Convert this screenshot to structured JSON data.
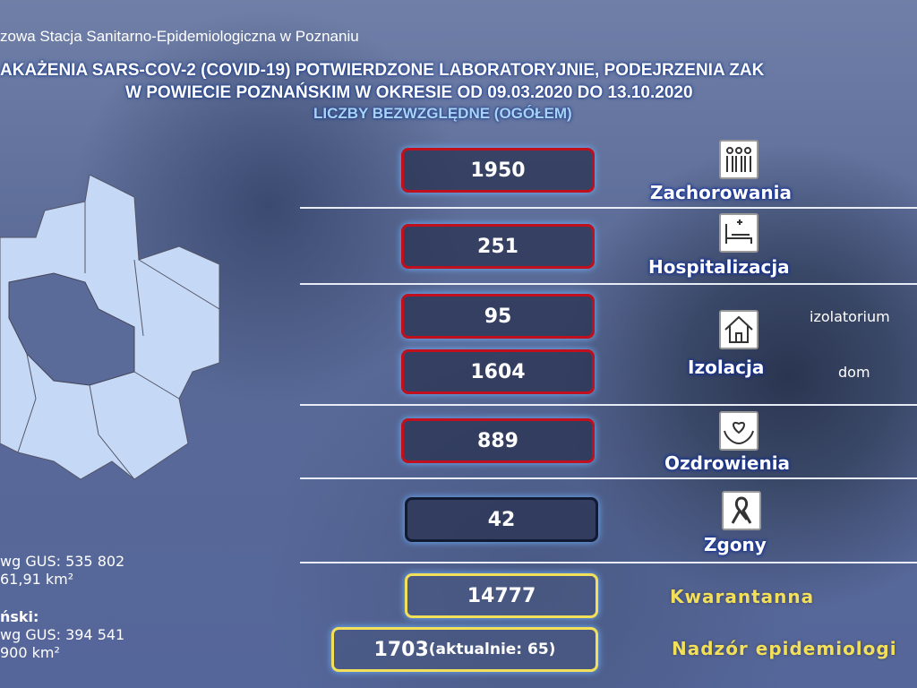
{
  "header": {
    "org": "zowa Stacja Sanitarno-Epidemiologiczna w Poznaniu",
    "title1": "AKAŻENIA SARS-COV-2 (COVID-19) POTWIERDZONE LABORATORYJNIE, PODEJRZENIA ZAK",
    "title2": "W POWIECIE POZNAŃSKIM W OKRESIE OD 09.03.2020 DO 13.10.2020",
    "subtitle": "LICZBY BEZWZGLĘDNE (OGÓŁEM)"
  },
  "stats": {
    "cases": {
      "value": "1950",
      "label": "Zachorowania",
      "icon": "people-icon"
    },
    "hospital": {
      "value": "251",
      "label": "Hospitalizacja",
      "icon": "hospital-bed-icon"
    },
    "isolation": {
      "value_izolatorium": "95",
      "value_dom": "1604",
      "label": "Izolacja",
      "note_izolatorium": "izolatorium",
      "note_dom": "dom",
      "icon": "house-icon"
    },
    "recovered": {
      "value": "889",
      "label": "Ozdrowienia",
      "icon": "heart-hands-icon"
    },
    "deaths": {
      "value": "42",
      "label": "Zgony",
      "icon": "ribbon-icon"
    },
    "quarantine": {
      "value": "14777",
      "label": "Kwarantanna"
    },
    "supervision": {
      "value": "1703",
      "current": "(aktualnie: 65)",
      "label": "Nadzór epidemiologi"
    }
  },
  "side": {
    "city_pop": "wg GUS: 535 802",
    "city_area": "61,91 km²",
    "county_title": "ński:",
    "county_pop": "wg GUS: 394 541",
    "county_area": "900 km²"
  },
  "colors": {
    "red_border": "#c0101e",
    "yellow": "#f2df5a",
    "dark_border": "#111a33",
    "label_glow": "#0b2a9a"
  }
}
